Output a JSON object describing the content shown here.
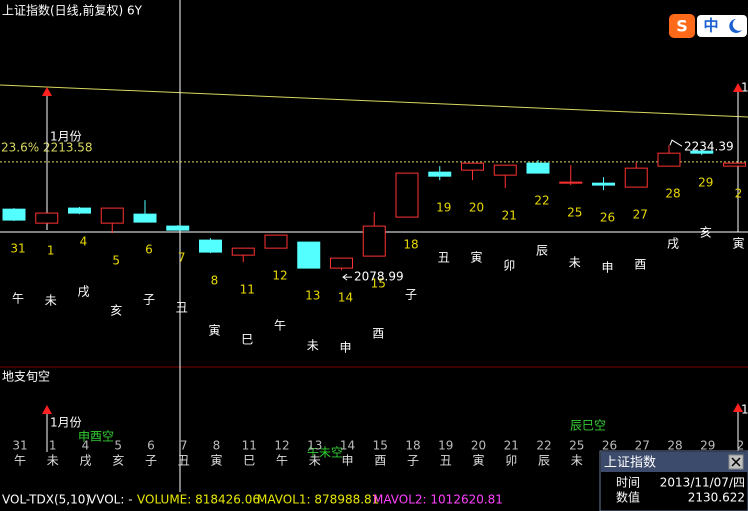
{
  "window": {
    "title": "上证指数(日线,前复权) 6Y",
    "ime": "中"
  },
  "chart_data": {
    "type": "candlestick",
    "categories": [
      "31",
      "1",
      "4",
      "5",
      "6",
      "7",
      "8",
      "11",
      "12",
      "13",
      "14",
      "15",
      "18",
      "19",
      "20",
      "21",
      "22",
      "25",
      "26",
      "27",
      "28",
      "29",
      "2"
    ],
    "branches": [
      "午",
      "未",
      "戌",
      "亥",
      "子",
      "丑",
      "寅",
      "巳",
      "午",
      "未",
      "申",
      "酉",
      "子",
      "丑",
      "寅",
      "卯",
      "辰",
      "未",
      "申",
      "酉",
      "戌",
      "亥",
      "寅"
    ],
    "open": [
      2154.8,
      2137.4,
      2156.1,
      2137.4,
      2148.6,
      2133.7,
      2116.3,
      2097.6,
      2106.3,
      2113.8,
      2081.5,
      2096.4,
      2144.9,
      2200.8,
      2203.3,
      2197.1,
      2212.0,
      2187.1,
      2187.1,
      2182.2,
      2208.3,
      2226.9,
      2208.3
    ],
    "high": [
      2156.1,
      2149.9,
      2157.4,
      2156.1,
      2166.0,
      2135.0,
      2118.8,
      2106.3,
      2122.5,
      2113.8,
      2093.9,
      2151.1,
      2199.6,
      2208.3,
      2212.0,
      2209.5,
      2215.7,
      2209.5,
      2194.6,
      2213.2,
      2234.39,
      2229.4,
      2212.0
    ],
    "low": [
      2140.0,
      2137.4,
      2148.6,
      2125.0,
      2138.7,
      2128.7,
      2100.1,
      2088.9,
      2106.3,
      2081.5,
      2078.99,
      2096.4,
      2144.9,
      2190.9,
      2190.9,
      2180.9,
      2199.6,
      2184.7,
      2178.4,
      2182.2,
      2208.3,
      2222.0,
      2208.3
    ],
    "close": [
      2141.2,
      2149.9,
      2149.9,
      2156.1,
      2138.7,
      2128.7,
      2101.4,
      2106.3,
      2122.5,
      2081.5,
      2093.9,
      2133.7,
      2199.6,
      2195.8,
      2212.0,
      2209.5,
      2199.6,
      2188.4,
      2184.7,
      2205.8,
      2224.4,
      2224.4,
      2212.0
    ],
    "up_color": "#ff3232",
    "down_color": "#54ffff",
    "ylim": [
      1961,
      2390
    ],
    "fib_level": {
      "value": 2213.58,
      "label": "23.6% 2213.58"
    },
    "low_mark": 2078.99,
    "high_mark": 2234.39,
    "month_markers": [
      "1月份",
      "1月份"
    ]
  },
  "lower_panel": {
    "title": "地支旬空",
    "voids": [
      "申酉空",
      "午未空",
      "辰巳空"
    ]
  },
  "status_bar": {
    "indicator": "VOL-TDX(5,10)",
    "vvol": "VVOL: -",
    "volume": "VOLUME: 818426.06",
    "mavol1": "MAVOL1: 878988.81",
    "mavol2": "MAVOL2: 1012620.81"
  },
  "info_popup": {
    "title": "上证指数",
    "rows": [
      [
        "时间",
        "2013/11/07/四"
      ],
      [
        "数值",
        "2130.622"
      ]
    ]
  }
}
